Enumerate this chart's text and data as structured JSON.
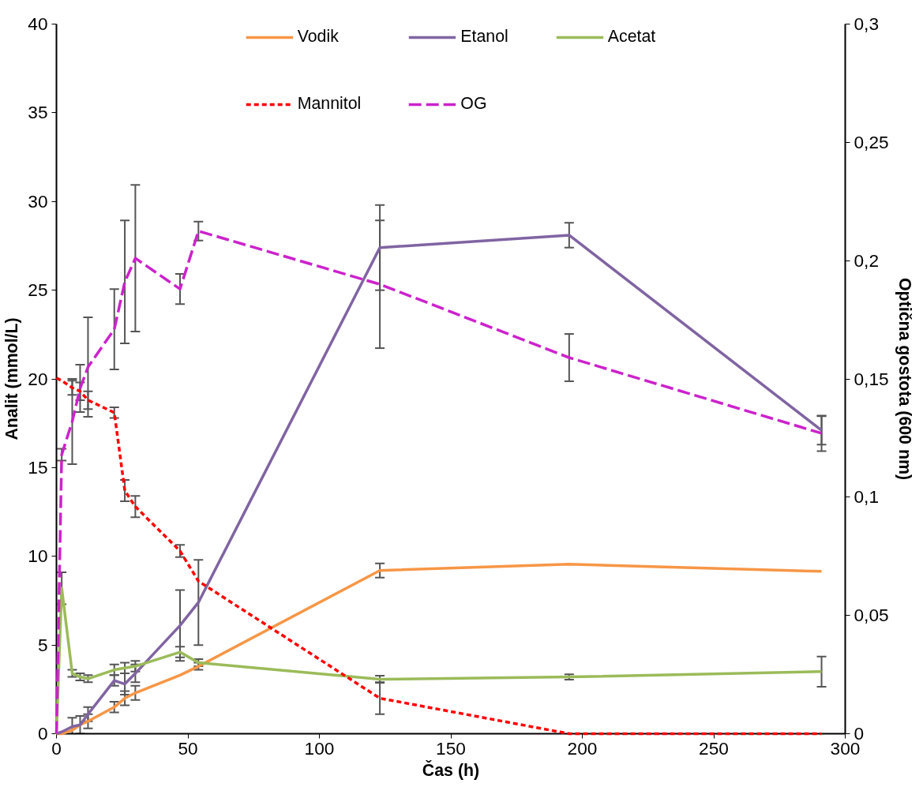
{
  "chart_data": {
    "type": "line",
    "xlabel": "Čas (h)",
    "ylabel": "Analit (mmol/L)",
    "y2label": "Optična gostota (600 nm)",
    "x": [
      0,
      2,
      6,
      9,
      12,
      22,
      26,
      30,
      47,
      54,
      123,
      195,
      291
    ],
    "xlim": [
      0,
      300
    ],
    "xticks": [
      0,
      50,
      100,
      150,
      200,
      250,
      300
    ],
    "ylim": [
      0,
      40
    ],
    "yticks": [
      0,
      5,
      10,
      15,
      20,
      25,
      30,
      35,
      40
    ],
    "y2lim": [
      0,
      0.3
    ],
    "y2ticks": [
      {
        "value": 0,
        "label": "0"
      },
      {
        "value": 0.05,
        "label": "0,05"
      },
      {
        "value": 0.1,
        "label": "0,1"
      },
      {
        "value": 0.15,
        "label": "0,15"
      },
      {
        "value": 0.2,
        "label": "0,2"
      },
      {
        "value": 0.25,
        "label": "0,25"
      },
      {
        "value": 0.3,
        "label": "0,3"
      }
    ],
    "grid": false,
    "legend": "top",
    "marker": "none",
    "series": [
      {
        "name": "Vodik",
        "color": "#f79646",
        "line_style": "solid",
        "values": [
          0,
          0,
          0.2,
          0.5,
          0.7,
          1.5,
          2.0,
          2.3,
          3.3,
          3.8,
          9.2,
          9.55,
          9.15
        ],
        "errors": [
          null,
          null,
          null,
          null,
          0.4,
          0.3,
          0.4,
          0.4,
          null,
          0.2,
          0.4,
          null,
          null
        ]
      },
      {
        "name": "Etanol",
        "color": "#8064a2",
        "line_style": "solid",
        "values": [
          0,
          0.1,
          0.4,
          0.5,
          1.1,
          3.0,
          2.8,
          3.4,
          6.1,
          7.4,
          27.4,
          28.1,
          17.1
        ],
        "errors": [
          null,
          null,
          0.5,
          0.5,
          0.4,
          0.3,
          0.6,
          0.5,
          2.0,
          2.4,
          2.4,
          0.7,
          0.8
        ]
      },
      {
        "name": "Acetat",
        "color": "#9bbb59",
        "line_style": "solid",
        "values": [
          0,
          8.2,
          3.4,
          3.2,
          3.1,
          3.6,
          3.7,
          3.8,
          4.6,
          4.0,
          3.07,
          3.2,
          3.5
        ],
        "errors": [
          null,
          0.9,
          0.2,
          0.2,
          0.2,
          0.3,
          0.3,
          0.3,
          0.3,
          0.2,
          0.2,
          0.15,
          0.85
        ]
      },
      {
        "name": "Mannitol",
        "color": "#ff0000",
        "line_style": "dashed",
        "values": [
          20.05,
          19.9,
          19.5,
          19.3,
          18.8,
          18.1,
          13.7,
          12.8,
          10.3,
          8.6,
          2.0,
          0,
          0
        ],
        "errors": [
          null,
          null,
          0.4,
          0.5,
          0.5,
          0.3,
          0.6,
          0.6,
          0.35,
          null,
          0.9,
          null,
          null
        ]
      },
      {
        "name": "OG",
        "color": "#cc22cc",
        "line_style": "longdash",
        "axis": "y2",
        "values": [
          0,
          0.118,
          0.132,
          0.146,
          0.155,
          0.171,
          0.191,
          0.201,
          0.188,
          0.2125,
          0.19,
          0.159,
          0.127
        ],
        "errors": [
          null,
          0.0025,
          0.018,
          0.01,
          0.021,
          0.017,
          0.026,
          0.031,
          0.0064,
          0.004,
          0.027,
          0.01,
          0.0075
        ]
      }
    ]
  }
}
